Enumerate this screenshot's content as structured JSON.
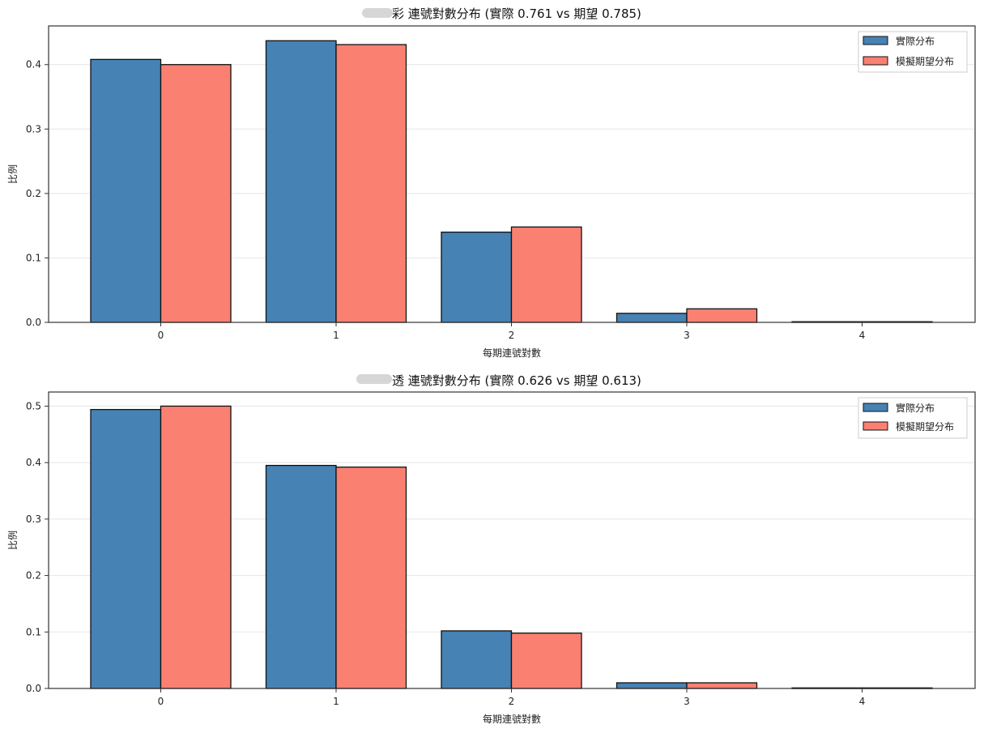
{
  "chart_data": [
    {
      "type": "bar",
      "title": "彩 連號對數分布 (實際 0.761 vs 期望 0.785)",
      "xlabel": "每期連號對數",
      "ylabel": "比例",
      "categories": [
        "0",
        "1",
        "2",
        "3",
        "4"
      ],
      "series": [
        {
          "name": "實際分布",
          "color": "#4682B4",
          "values": [
            0.408,
            0.437,
            0.14,
            0.014,
            0.001
          ]
        },
        {
          "name": "模擬期望分布",
          "color": "#FA8072",
          "values": [
            0.4,
            0.431,
            0.148,
            0.021,
            0.001
          ]
        }
      ],
      "ylim": [
        0,
        0.46
      ],
      "yticks": [
        0.0,
        0.1,
        0.2,
        0.3,
        0.4
      ],
      "ytick_labels": [
        "0.0",
        "0.1",
        "0.2",
        "0.3",
        "0.4"
      ],
      "grid": "y",
      "legend": "top-right"
    },
    {
      "type": "bar",
      "title": "透 連號對數分布 (實際 0.626 vs 期望 0.613)",
      "xlabel": "每期連號對數",
      "ylabel": "比例",
      "categories": [
        "0",
        "1",
        "2",
        "3",
        "4"
      ],
      "series": [
        {
          "name": "實際分布",
          "color": "#4682B4",
          "values": [
            0.494,
            0.395,
            0.102,
            0.01,
            0.001
          ]
        },
        {
          "name": "模擬期望分布",
          "color": "#FA8072",
          "values": [
            0.5,
            0.392,
            0.098,
            0.01,
            0.001
          ]
        }
      ],
      "ylim": [
        0,
        0.525
      ],
      "yticks": [
        0.0,
        0.1,
        0.2,
        0.3,
        0.4,
        0.5
      ],
      "ytick_labels": [
        "0.0",
        "0.1",
        "0.2",
        "0.3",
        "0.4",
        "0.5"
      ],
      "grid": "y",
      "legend": "top-right"
    }
  ]
}
